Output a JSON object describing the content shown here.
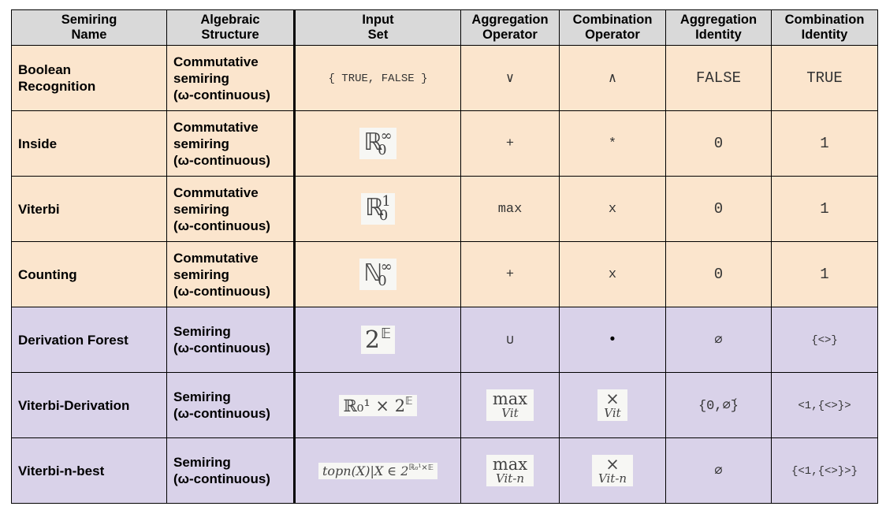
{
  "headers": [
    "Semiring\nName",
    "Algebraic\nStructure",
    "Input\nSet",
    "Aggregation\nOperator",
    "Combination\nOperator",
    "Aggregation\nIdentity",
    "Combination\nIdentity"
  ],
  "rows": [
    {
      "name": "Boolean Recognition",
      "structure": "Commutative\nsemiring\n(ω-continuous)",
      "input_set": "{ TRUE, FALSE }",
      "aggregation": "∨",
      "combination": "∧",
      "agg_identity": "FALSE",
      "comb_identity": "TRUE"
    },
    {
      "name": "Inside",
      "structure": "Commutative\nsemiring\n(ω-continuous)",
      "input_set_base": "ℝ",
      "input_set_sub": "0",
      "input_set_sup": "∞",
      "aggregation": "+",
      "combination": "*",
      "agg_identity": "0",
      "comb_identity": "1"
    },
    {
      "name": "Viterbi",
      "structure": "Commutative\nsemiring\n(ω-continuous)",
      "input_set_base": "ℝ",
      "input_set_sub": "0",
      "input_set_sup": "1",
      "aggregation": "max",
      "combination": "x",
      "agg_identity": "0",
      "comb_identity": "1"
    },
    {
      "name": "Counting",
      "structure": "Commutative\nsemiring\n(ω-continuous)",
      "input_set_base": "ℕ",
      "input_set_sub": "0",
      "input_set_sup": "∞",
      "aggregation": "+",
      "combination": "x",
      "agg_identity": "0",
      "comb_identity": "1"
    },
    {
      "name": "Derivation Forest",
      "structure": "Semiring\n(ω-continuous)",
      "input_set_base": "2",
      "input_set_sup": "𝔼",
      "aggregation": "∪",
      "combination": "•",
      "agg_identity": "∅",
      "comb_identity": "{<>}"
    },
    {
      "name": "Viterbi-Derivation",
      "structure": "Semiring\n(ω-continuous)",
      "input_set_text": "ℝ₀¹ × 2",
      "input_set_sup": "𝔼",
      "aggregation_top": "max",
      "aggregation_bot": "Vit",
      "combination_top": "×",
      "combination_bot": "Vit",
      "agg_identity": "{0,∅́}",
      "comb_identity": "<1,{<>}>"
    },
    {
      "name": "Viterbi-n-best",
      "structure": "Semiring\n(ω-continuous)",
      "input_set_text": "topn(X)|X ∈ 2",
      "input_set_sup": "ℝ₀¹×𝔼",
      "aggregation_top": "max",
      "aggregation_bot": "Vit-n",
      "combination_top": "×",
      "combination_bot": "Vit-n",
      "agg_identity": "∅",
      "comb_identity": "{<1,{<>}>}"
    }
  ]
}
